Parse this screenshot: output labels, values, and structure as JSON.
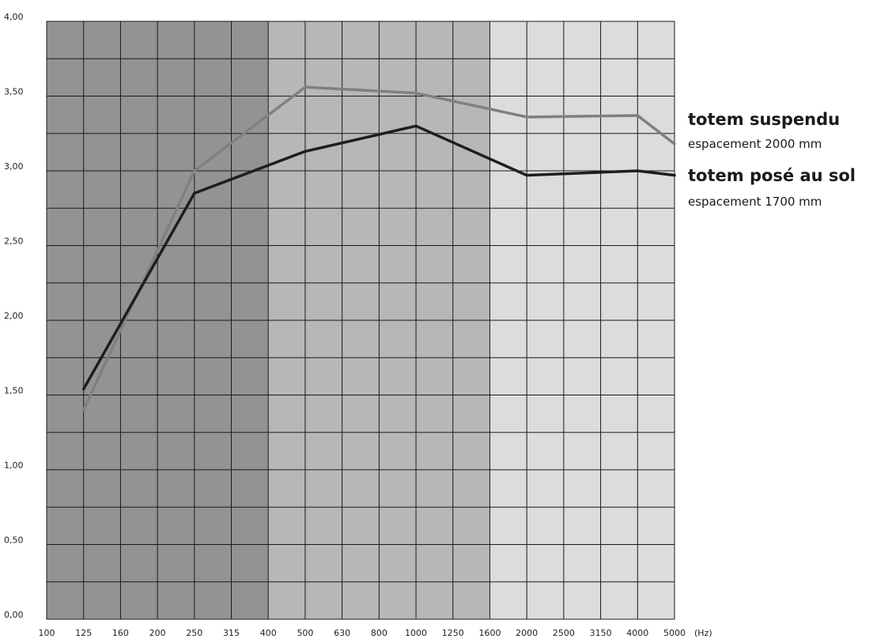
{
  "chart_data": {
    "type": "line",
    "x": [
      "100",
      "125",
      "160",
      "200",
      "250",
      "315",
      "400",
      "500",
      "630",
      "800",
      "1000",
      "1250",
      "1600",
      "2000",
      "2500",
      "3150",
      "4000",
      "5000"
    ],
    "x_unit": "(Hz)",
    "y_ticks": [
      "0,00",
      "0,50",
      "1,00",
      "1,50",
      "2,00",
      "2,50",
      "3,00",
      "3,50",
      "4,00"
    ],
    "ylim": [
      0,
      4
    ],
    "grid": true,
    "background_bands": [
      {
        "from": "100",
        "to": "400",
        "color": "#939393"
      },
      {
        "from": "400",
        "to": "1600",
        "color": "#b7b7b7"
      },
      {
        "from": "1600",
        "to": "5000",
        "color": "#dcdcdc"
      }
    ],
    "series": [
      {
        "name": "totem suspendu",
        "subtitle": "espacement 2000 mm",
        "color": "#808080",
        "points": [
          [
            "125",
            1.4
          ],
          [
            "250",
            3.0
          ],
          [
            "500",
            3.56
          ],
          [
            "1000",
            3.52
          ],
          [
            "2000",
            3.36
          ],
          [
            "4000",
            3.37
          ],
          [
            "5000",
            3.18
          ]
        ]
      },
      {
        "name": "totem posé au sol",
        "subtitle": "espacement 1700 mm",
        "color": "#1e1e1e",
        "points": [
          [
            "125",
            1.54
          ],
          [
            "250",
            2.85
          ],
          [
            "500",
            3.13
          ],
          [
            "1000",
            3.3
          ],
          [
            "2000",
            2.97
          ],
          [
            "4000",
            3.0
          ],
          [
            "5000",
            2.97
          ]
        ]
      }
    ],
    "legend_placement": "right"
  }
}
